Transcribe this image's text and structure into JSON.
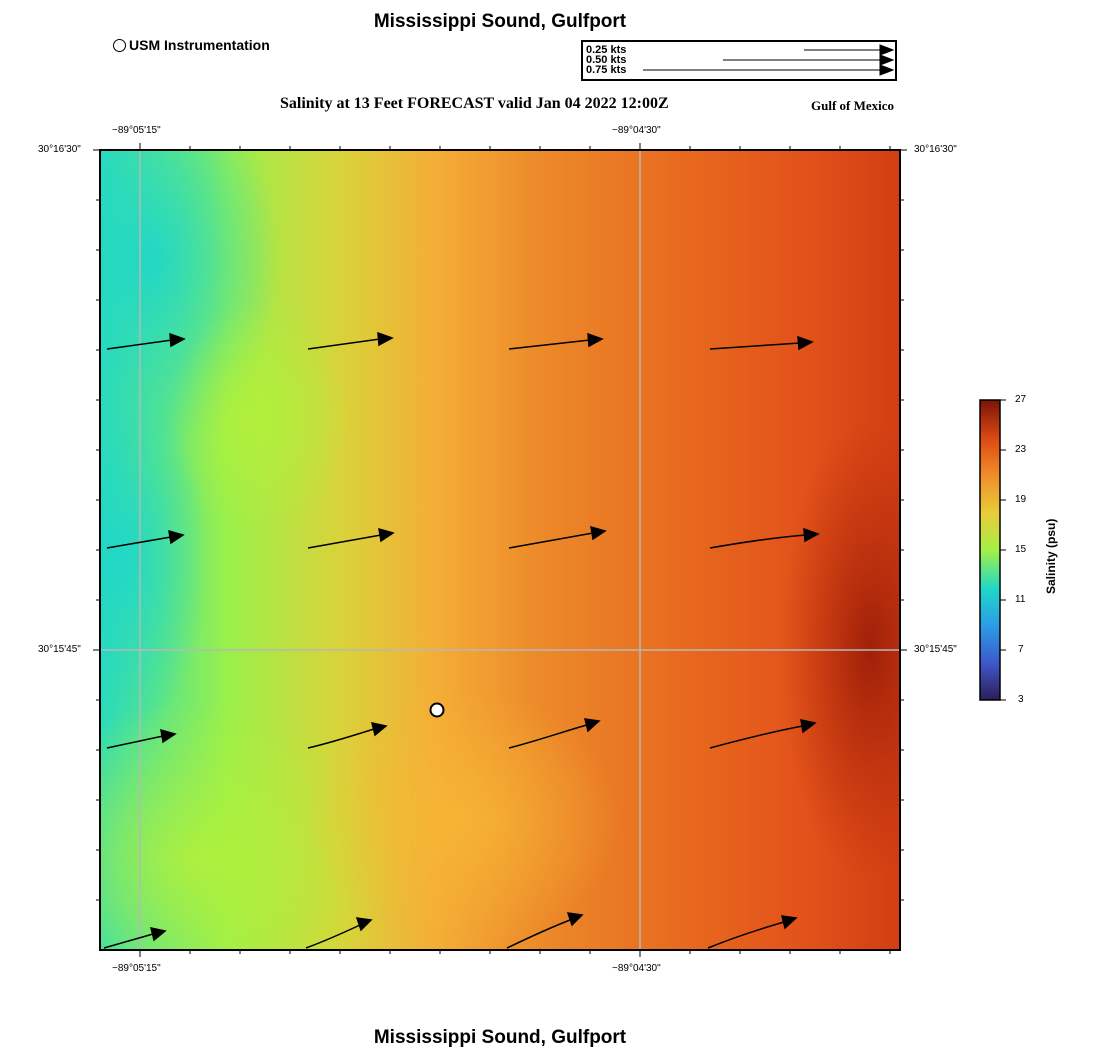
{
  "header": {
    "title": "Mississippi Sound, Gulfport",
    "forecast_title": "Salinity at 13 Feet FORECAST valid Jan 04 2022 12:00Z",
    "region_label": "Gulf of Mexico",
    "footer_title": "Mississippi Sound, Gulfport"
  },
  "legend": {
    "station_label": "USM Instrumentation",
    "speed_scale": [
      "0.25 kts",
      "0.50 kts",
      "0.75 kts"
    ]
  },
  "axes": {
    "x_ticks": [
      "−89°05'15\"",
      "−89°04'30\""
    ],
    "y_ticks": [
      "30°16'30\"",
      "30°15'45\""
    ]
  },
  "colorbar": {
    "title": "Salinity (psu)",
    "ticks": [
      "27",
      "23",
      "19",
      "15",
      "11",
      "7",
      "3"
    ],
    "range": [
      3,
      27
    ]
  },
  "colors": {
    "low": "#2b1e56",
    "teal": "#23d8c4",
    "green": "#b5f03c",
    "yellow": "#f6b233",
    "orange": "#e8661e",
    "dark": "#7a1406"
  }
}
